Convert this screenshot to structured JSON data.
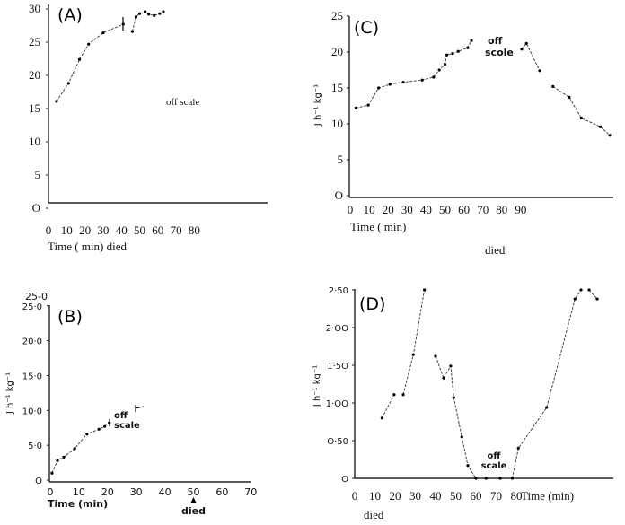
{
  "chart_data": [
    {
      "id": "A",
      "type": "line",
      "title": "(A)",
      "xlabel": "Time ( min) died",
      "ylabel": "",
      "annotation": "off scale",
      "xticks": [
        "0",
        "10",
        "20",
        "30",
        "40",
        "50",
        "60",
        "70",
        "80"
      ],
      "xtick_values": [
        0,
        10,
        20,
        30,
        40,
        50,
        60,
        70,
        80
      ],
      "yticks": [
        "30",
        "25",
        "20",
        "15",
        "10",
        "5",
        "O"
      ],
      "ytick_values": [
        30,
        25,
        20,
        15,
        10,
        5,
        0
      ],
      "xlim": [
        0,
        120
      ],
      "ylim": [
        0,
        30
      ],
      "segments": [
        [
          [
            4.4,
            16.1
          ],
          [
            11,
            18.8
          ],
          [
            17,
            22.4
          ],
          [
            22,
            24.7
          ],
          [
            30,
            26.4
          ],
          [
            41,
            27.7
          ]
        ],
        [
          [
            46,
            26.6
          ],
          [
            48,
            28.8
          ],
          [
            50,
            29.3
          ],
          [
            53,
            29.6
          ],
          [
            55,
            29.2
          ],
          [
            58,
            29.0
          ],
          [
            61,
            29.3
          ],
          [
            63,
            29.6
          ]
        ]
      ]
    },
    {
      "id": "C",
      "type": "line",
      "title": "(C)",
      "xlabel": "Time ( min)",
      "ylabel": "J h⁻¹ kg⁻¹",
      "annotation_line1": "off",
      "annotation_line2": "scole",
      "died_label": "died",
      "xticks": [
        "0",
        "10",
        "20",
        "30",
        "40",
        "50",
        "60",
        "70",
        "80",
        "90"
      ],
      "xtick_values": [
        0,
        10,
        20,
        30,
        40,
        50,
        60,
        70,
        80,
        90
      ],
      "yticks": [
        "25",
        "20",
        "15",
        "10",
        "5",
        "O"
      ],
      "ytick_values": [
        25,
        20,
        15,
        10,
        5,
        0
      ],
      "xlim": [
        0,
        140
      ],
      "ylim": [
        0,
        25
      ],
      "segments": [
        [
          [
            3,
            12.2
          ],
          [
            9.5,
            12.6
          ],
          [
            15,
            15
          ],
          [
            21,
            15.5
          ],
          [
            28,
            15.8
          ],
          [
            38,
            16.1
          ],
          [
            44,
            16.5
          ],
          [
            47,
            17.5
          ],
          [
            50,
            18.3
          ],
          [
            51,
            19.6
          ],
          [
            54,
            19.8
          ],
          [
            57,
            20.1
          ],
          [
            62,
            20.6
          ],
          [
            64,
            21.6
          ]
        ],
        [
          [
            90.5,
            20.4
          ],
          [
            93,
            21.2
          ],
          [
            100,
            17.4
          ]
        ],
        [
          [
            107,
            15.2
          ],
          [
            115.6,
            13.7
          ],
          [
            122,
            10.8
          ],
          [
            132,
            9.6
          ],
          [
            137,
            8.4
          ]
        ]
      ]
    },
    {
      "id": "B",
      "type": "line",
      "title": "(B)",
      "xlabel": "Time (min)",
      "ylabel": "J h⁻¹ kg⁻¹",
      "extra_label": "25-0",
      "annotation_line1": "off",
      "annotation_line2": "scale",
      "died_label": "died",
      "died_at": 50,
      "xticks": [
        "0",
        "10",
        "20",
        "30",
        "40",
        "50",
        "60",
        "70"
      ],
      "xtick_values": [
        0,
        10,
        20,
        30,
        40,
        50,
        60,
        70
      ],
      "yticks": [
        "25·0",
        "20·0",
        "15·0",
        "10·0",
        "5·0",
        "O"
      ],
      "ytick_values": [
        25,
        20,
        15,
        10,
        5,
        0
      ],
      "xlim": [
        0,
        70
      ],
      "ylim": [
        0,
        25
      ],
      "segments": [
        [
          [
            0.6,
            1.0
          ],
          [
            2.5,
            2.8
          ],
          [
            4.7,
            3.3
          ],
          [
            8.5,
            4.5
          ],
          [
            12.8,
            6.6
          ],
          [
            17,
            7.3
          ],
          [
            19,
            7.7
          ],
          [
            20.6,
            8.2
          ]
        ]
      ]
    },
    {
      "id": "D",
      "type": "line",
      "title": "(D)",
      "xlabel": "Time (min)",
      "ylabel": "J h⁻¹ kg⁻¹",
      "annotation_line1": "off",
      "annotation_line2": "scale",
      "died_label": "died",
      "xticks": [
        "0",
        "10",
        "20",
        "30",
        "40",
        "50",
        "60",
        "70",
        "80"
      ],
      "xtick_values": [
        0,
        10,
        20,
        30,
        40,
        50,
        60,
        70,
        80
      ],
      "yticks": [
        "2·50",
        "2·OO",
        "1·5O",
        "1·OO",
        "O·50",
        "O"
      ],
      "ytick_values": [
        2.5,
        2.0,
        1.5,
        1.0,
        0.5,
        0
      ],
      "xlim": [
        0,
        128
      ],
      "ylim": [
        0,
        2.5
      ],
      "segments": [
        [
          [
            13.5,
            0.8
          ],
          [
            19.5,
            1.11
          ]
        ],
        [
          [
            24,
            1.11
          ],
          [
            29,
            1.64
          ],
          [
            34.5,
            2.5
          ]
        ],
        [
          [
            40,
            1.62
          ],
          [
            44,
            1.33
          ],
          [
            47.5,
            1.49
          ],
          [
            49,
            1.07
          ],
          [
            53,
            0.55
          ],
          [
            56,
            0.17
          ],
          [
            60,
            0
          ],
          [
            65,
            0
          ],
          [
            72,
            0
          ],
          [
            78,
            0
          ],
          [
            81,
            0.4
          ],
          [
            95,
            0.94
          ],
          [
            109,
            2.38
          ],
          [
            112,
            2.5
          ]
        ],
        [
          [
            116,
            2.5
          ],
          [
            120,
            2.38
          ]
        ]
      ]
    }
  ]
}
